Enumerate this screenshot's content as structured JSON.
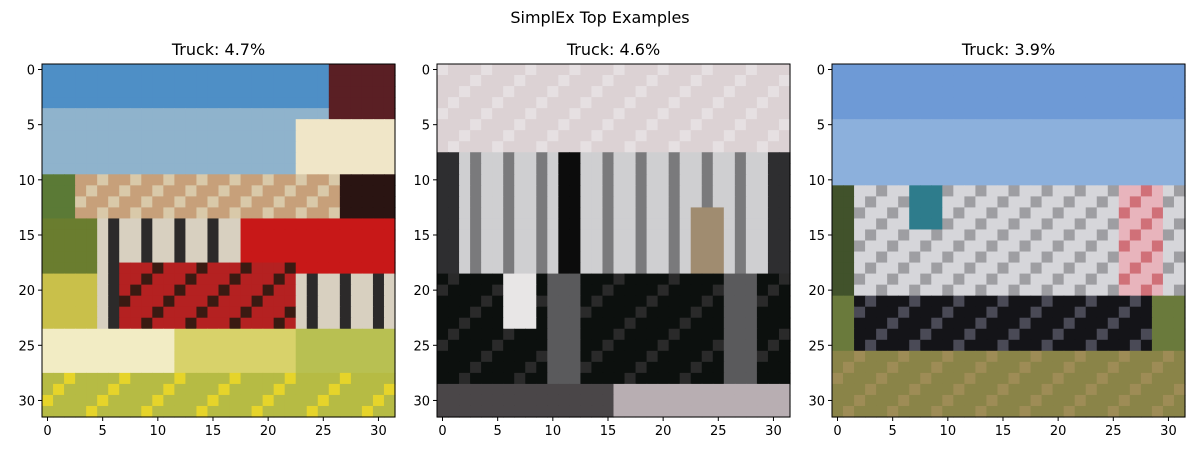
{
  "figure": {
    "suptitle": "SimplEx Top Examples"
  },
  "chart_data": [
    {
      "type": "heatmap",
      "title": "Truck: 4.7%",
      "class_label": "Truck",
      "weight_percent": 4.7,
      "xlim": [
        -0.5,
        31.5
      ],
      "ylim": [
        31.5,
        -0.5
      ],
      "xticks": [
        0,
        5,
        10,
        15,
        20,
        25,
        30
      ],
      "yticks": [
        0,
        5,
        10,
        15,
        20,
        25,
        30
      ],
      "grid": false,
      "image": "32x32 RGB thumbnail: red fire truck on street, blue sky, yellow-green foreground"
    },
    {
      "type": "heatmap",
      "title": "Truck: 4.6%",
      "class_label": "Truck",
      "weight_percent": 4.6,
      "xlim": [
        -0.5,
        31.5
      ],
      "ylim": [
        31.5,
        -0.5
      ],
      "xticks": [
        0,
        5,
        10,
        15,
        20,
        25,
        30
      ],
      "yticks": [
        0,
        5,
        10,
        15,
        20,
        25,
        30
      ],
      "grid": false,
      "image": "32x32 RGB thumbnail: grey/white truck front with dark wheels, pale sky"
    },
    {
      "type": "heatmap",
      "title": "Truck: 3.9%",
      "class_label": "Truck",
      "weight_percent": 3.9,
      "xlim": [
        -0.5,
        31.5
      ],
      "ylim": [
        31.5,
        -0.5
      ],
      "xticks": [
        0,
        5,
        10,
        15,
        20,
        25,
        30
      ],
      "yticks": [
        0,
        5,
        10,
        15,
        20,
        25,
        30
      ],
      "grid": false,
      "image": "32x32 RGB thumbnail: silver box truck side view, blue sky, grass field"
    }
  ]
}
